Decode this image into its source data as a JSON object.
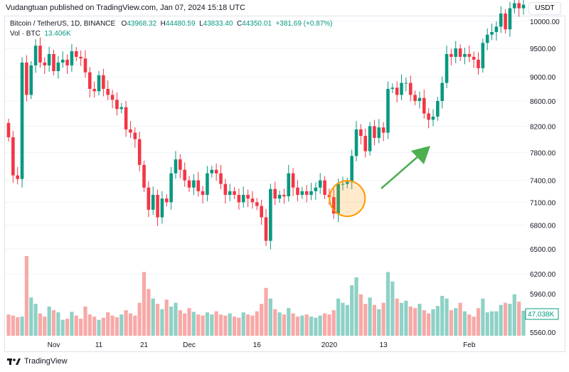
{
  "publisher_line": "Vudangtuan published on TradingView.com, Jan 07, 2024 15:18 UTC",
  "legend": {
    "symbol": "Bitcoin / TetherUS, 1D, BINANCE",
    "o": "43968.32",
    "h": "44480.59",
    "l": "43833.40",
    "c": "44350.01",
    "change": "+381.69 (+0.87%)",
    "vol_label": "Vol · BTC",
    "vol_value": "13.406K"
  },
  "currency_button": "USDT",
  "footer_brand": "TradingView",
  "colors": {
    "up": "#089981",
    "down": "#f23645",
    "vol_up": "#8ed1c6",
    "vol_down": "#f7a9a7",
    "circle": "#ff9800",
    "arrow": "#4caf50"
  },
  "chart_data": {
    "type": "candlestick",
    "scale": "log",
    "y_ticks": [
      6200,
      6500,
      6800,
      7100,
      7400,
      7800,
      8200,
      8600,
      9000,
      9500,
      10000
    ],
    "y_tick_labels": [
      "6200.00",
      "6500.00",
      "6800.00",
      "7100.00",
      "7400.00",
      "7800.00",
      "8200.00",
      "8600.00",
      "9000.00",
      "9500.00",
      "10000.00"
    ],
    "volume_axis_label": "5960.00",
    "volume_axis_label2": "5560.00",
    "volume_last_label": "47.038K",
    "x_labels": [
      {
        "label": "Nov",
        "index": 10
      },
      {
        "label": "11",
        "index": 20
      },
      {
        "label": "21",
        "index": 30
      },
      {
        "label": "Dec",
        "index": 40
      },
      {
        "label": "16",
        "index": 55
      },
      {
        "label": "2020",
        "index": 71
      },
      {
        "label": "13",
        "index": 83
      },
      {
        "label": "Feb",
        "index": 102
      }
    ],
    "first_open": 8250,
    "closes": [
      8030,
      7470,
      7420,
      9250,
      8700,
      9200,
      9550,
      9250,
      9200,
      9400,
      9100,
      9250,
      9300,
      9200,
      9450,
      9350,
      9320,
      9080,
      8800,
      8760,
      9030,
      8800,
      8700,
      8620,
      8470,
      8500,
      8150,
      8100,
      8000,
      7620,
      7300,
      7000,
      7200,
      6900,
      7150,
      7100,
      7500,
      7700,
      7550,
      7400,
      7300,
      7400,
      7250,
      7200,
      7500,
      7550,
      7500,
      7350,
      7200,
      7250,
      7200,
      7100,
      7200,
      7150,
      7100,
      7050,
      6900,
      6600,
      7280,
      7150,
      7200,
      7180,
      7500,
      7300,
      7200,
      7250,
      7200,
      7250,
      7300,
      7400,
      7200,
      7170,
      6950,
      7350,
      7350,
      7380,
      7750,
      8150,
      8050,
      7820,
      8200,
      8020,
      8180,
      8100,
      8800,
      8820,
      8700,
      8900,
      8900,
      8700,
      8600,
      8650,
      8400,
      8300,
      8350,
      8600,
      8900,
      9400,
      9350,
      9500,
      9350,
      9400,
      9350,
      9300,
      9150,
      9600,
      9750,
      9800,
      9900,
      10150,
      9850,
      10250,
      10350,
      10250,
      10320
    ],
    "volumes": [
      40,
      38,
      35,
      36,
      150,
      72,
      60,
      42,
      36,
      55,
      48,
      44,
      30,
      32,
      45,
      38,
      32,
      55,
      40,
      36,
      30,
      34,
      44,
      38,
      35,
      40,
      48,
      42,
      38,
      62,
      120,
      88,
      70,
      60,
      50,
      68,
      55,
      62,
      48,
      42,
      52,
      45,
      40,
      38,
      44,
      40,
      46,
      40,
      38,
      42,
      36,
      34,
      44,
      40,
      38,
      46,
      60,
      90,
      70,
      50,
      44,
      40,
      52,
      42,
      36,
      38,
      40,
      36,
      34,
      38,
      42,
      40,
      48,
      70,
      62,
      58,
      95,
      110,
      78,
      60,
      72,
      58,
      50,
      62,
      120,
      102,
      70,
      62,
      66,
      55,
      52,
      60,
      48,
      42,
      50,
      56,
      75,
      70,
      48,
      52,
      62,
      46,
      40,
      36,
      52,
      70,
      44,
      46,
      46,
      58,
      62,
      60,
      78,
      64,
      47.038
    ]
  },
  "annotations": {
    "circle_index": 75,
    "circle_price": 7150
  }
}
